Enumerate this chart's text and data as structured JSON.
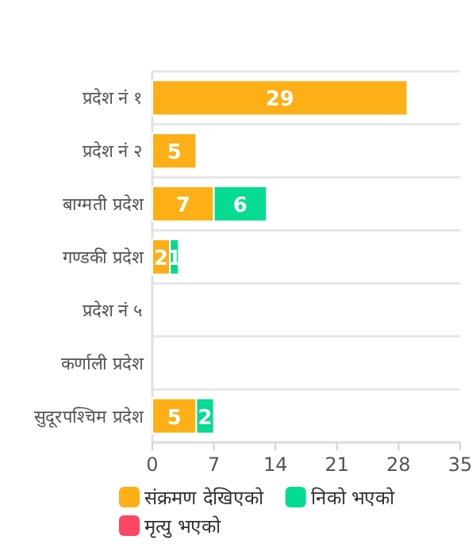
{
  "chart_data": {
    "type": "bar",
    "orientation": "horizontal",
    "stacked": true,
    "categories": [
      "प्रदेश नं १",
      "प्रदेश नं २",
      "बाग्मती प्रदेश",
      "गण्डकी प्रदेश",
      "प्रदेश नं ५",
      "कर्णाली प्रदेश",
      "सुदूरपश्चिम प्रदेश"
    ],
    "series": [
      {
        "name": "संक्रमण देखिएको",
        "color": "#fcaf17",
        "values": [
          29,
          5,
          7,
          2,
          null,
          null,
          5
        ]
      },
      {
        "name": "निको भएको",
        "color": "#05db91",
        "values": [
          null,
          null,
          6,
          1,
          null,
          null,
          2
        ]
      },
      {
        "name": "मृत्यु भएको",
        "color": "#fc4664",
        "values": [
          null,
          null,
          null,
          null,
          null,
          null,
          null
        ]
      }
    ],
    "xlim": [
      0,
      35
    ],
    "xticks": [
      0,
      7,
      14,
      21,
      28,
      35
    ],
    "grid": "y",
    "legend": "bottom",
    "data_labels": true
  }
}
